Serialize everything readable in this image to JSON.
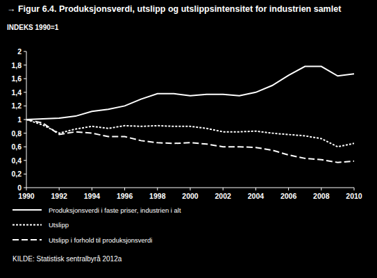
{
  "chart_data": {
    "type": "line",
    "title": "→ Figur 6.4. Produksjonsverdi, utslipp og utslippsintensitet for industrien samlet",
    "ylabel": "INDEKS 1990=1",
    "source": "KILDE: Statistisk sentralbyrå 2012a",
    "x": [
      1990,
      1991,
      1992,
      1993,
      1994,
      1995,
      1996,
      1997,
      1998,
      1999,
      2000,
      2001,
      2002,
      2003,
      2004,
      2005,
      2006,
      2007,
      2008,
      2009,
      2010
    ],
    "xlim": [
      1990,
      2010
    ],
    "xticks": [
      1990,
      1992,
      1994,
      1996,
      1998,
      2000,
      2002,
      2004,
      2006,
      2008,
      2010
    ],
    "ylim": [
      0,
      2
    ],
    "yticks": [
      0,
      {
        "value": 0.2,
        "label": "0,2"
      },
      {
        "value": 0.4,
        "label": "0,4"
      },
      {
        "value": 0.6,
        "label": "0,6"
      },
      {
        "value": 0.8,
        "label": "0,8"
      },
      1,
      {
        "value": 1.2,
        "label": "1,2"
      },
      {
        "value": 1.4,
        "label": "1,4"
      },
      {
        "value": 1.6,
        "label": "1,6"
      },
      {
        "value": 1.8,
        "label": "1,8"
      },
      2
    ],
    "grid": false,
    "legend": "bottom",
    "series": [
      {
        "name": "Produksjonsverdi i faste priser, industrien i alt",
        "color": "#ffffff",
        "line_style": "solid",
        "values": [
          1.0,
          1.01,
          1.02,
          1.05,
          1.12,
          1.15,
          1.2,
          1.3,
          1.38,
          1.38,
          1.35,
          1.37,
          1.37,
          1.35,
          1.4,
          1.5,
          1.65,
          1.78,
          1.78,
          1.64,
          1.67
        ]
      },
      {
        "name": "Utslipp",
        "color": "#ffffff",
        "line_style": "dotted",
        "values": [
          1.0,
          0.92,
          0.8,
          0.86,
          0.9,
          0.87,
          0.91,
          0.9,
          0.91,
          0.9,
          0.9,
          0.87,
          0.82,
          0.82,
          0.83,
          0.8,
          0.78,
          0.76,
          0.72,
          0.6,
          0.65
        ]
      },
      {
        "name": "Utslipp i forhold til produksjonsverdi",
        "color": "#ffffff",
        "line_style": "dashed",
        "values": [
          1.0,
          0.95,
          0.78,
          0.82,
          0.8,
          0.75,
          0.75,
          0.69,
          0.66,
          0.65,
          0.66,
          0.64,
          0.6,
          0.6,
          0.59,
          0.55,
          0.48,
          0.43,
          0.41,
          0.37,
          0.39
        ]
      }
    ]
  }
}
